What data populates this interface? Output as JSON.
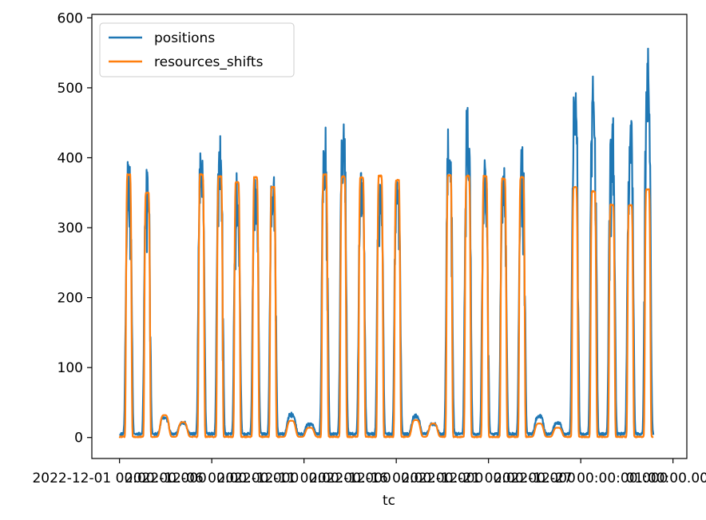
{
  "chart_data": {
    "type": "line",
    "title": "",
    "xlabel": "tc",
    "ylabel": "",
    "ylim": [
      -30,
      605
    ],
    "xlim": [
      -2.4,
      49.2
    ],
    "y_ticks": [
      0,
      100,
      200,
      300,
      400,
      500,
      600
    ],
    "x_ticks": [
      {
        "pos": 0,
        "label": "2022-12-01 00:00:00.000"
      },
      {
        "pos": 8,
        "label": "2022-12-06 00:00:00.000"
      },
      {
        "pos": 16,
        "label": "2022-12-11 00:00:00.000"
      },
      {
        "pos": 24,
        "label": "2022-12-16 00:00:00.000"
      },
      {
        "pos": 32,
        "label": "2022-12-21 00:00:00.000"
      },
      {
        "pos": 40,
        "label": "2022-12-27 00:00:00.000"
      },
      {
        "pos": 48,
        "label": "01:00:00.000"
      }
    ],
    "grid": false,
    "legend_position": "top-left",
    "series": [
      {
        "name": "positions",
        "color": "#1f77b4",
        "peaks": [
          {
            "center": 0.8,
            "value": 398
          },
          {
            "center": 2.4,
            "value": 393
          },
          {
            "center": 3.9,
            "value": 30
          },
          {
            "center": 5.5,
            "value": 22
          },
          {
            "center": 7.1,
            "value": 433
          },
          {
            "center": 8.7,
            "value": 448
          },
          {
            "center": 10.2,
            "value": 378
          },
          {
            "center": 11.8,
            "value": 372
          },
          {
            "center": 13.3,
            "value": 385
          },
          {
            "center": 14.9,
            "value": 35
          },
          {
            "center": 16.5,
            "value": 20
          },
          {
            "center": 17.8,
            "value": 448
          },
          {
            "center": 19.4,
            "value": 462
          },
          {
            "center": 21.0,
            "value": 388
          },
          {
            "center": 22.6,
            "value": 382
          },
          {
            "center": 24.1,
            "value": 385
          },
          {
            "center": 25.7,
            "value": 32
          },
          {
            "center": 27.2,
            "value": 20
          },
          {
            "center": 28.6,
            "value": 462
          },
          {
            "center": 30.2,
            "value": 475
          },
          {
            "center": 31.7,
            "value": 398
          },
          {
            "center": 33.3,
            "value": 392
          },
          {
            "center": 34.9,
            "value": 420
          },
          {
            "center": 36.4,
            "value": 32
          },
          {
            "center": 38.0,
            "value": 22
          },
          {
            "center": 39.5,
            "value": 532
          },
          {
            "center": 41.1,
            "value": 548
          },
          {
            "center": 42.7,
            "value": 470
          },
          {
            "center": 44.3,
            "value": 480
          },
          {
            "center": 45.8,
            "value": 575
          }
        ]
      },
      {
        "name": "resources_shifts",
        "color": "#ff7f0e",
        "peaks": [
          {
            "center": 0.8,
            "value": 376
          },
          {
            "center": 2.4,
            "value": 350
          },
          {
            "center": 3.9,
            "value": 32
          },
          {
            "center": 5.5,
            "value": 22
          },
          {
            "center": 7.1,
            "value": 376
          },
          {
            "center": 8.7,
            "value": 373
          },
          {
            "center": 10.2,
            "value": 365
          },
          {
            "center": 11.8,
            "value": 372
          },
          {
            "center": 13.3,
            "value": 358
          },
          {
            "center": 14.9,
            "value": 24
          },
          {
            "center": 16.5,
            "value": 14
          },
          {
            "center": 17.8,
            "value": 376
          },
          {
            "center": 19.4,
            "value": 373
          },
          {
            "center": 21.0,
            "value": 372
          },
          {
            "center": 22.6,
            "value": 374
          },
          {
            "center": 24.1,
            "value": 368
          },
          {
            "center": 25.7,
            "value": 25
          },
          {
            "center": 27.2,
            "value": 20
          },
          {
            "center": 28.6,
            "value": 375
          },
          {
            "center": 30.2,
            "value": 374
          },
          {
            "center": 31.7,
            "value": 374
          },
          {
            "center": 33.3,
            "value": 370
          },
          {
            "center": 34.9,
            "value": 372
          },
          {
            "center": 36.4,
            "value": 20
          },
          {
            "center": 38.0,
            "value": 14
          },
          {
            "center": 39.5,
            "value": 358
          },
          {
            "center": 41.1,
            "value": 352
          },
          {
            "center": 42.7,
            "value": 333
          },
          {
            "center": 44.3,
            "value": 332
          },
          {
            "center": 45.8,
            "value": 355
          }
        ]
      }
    ]
  }
}
